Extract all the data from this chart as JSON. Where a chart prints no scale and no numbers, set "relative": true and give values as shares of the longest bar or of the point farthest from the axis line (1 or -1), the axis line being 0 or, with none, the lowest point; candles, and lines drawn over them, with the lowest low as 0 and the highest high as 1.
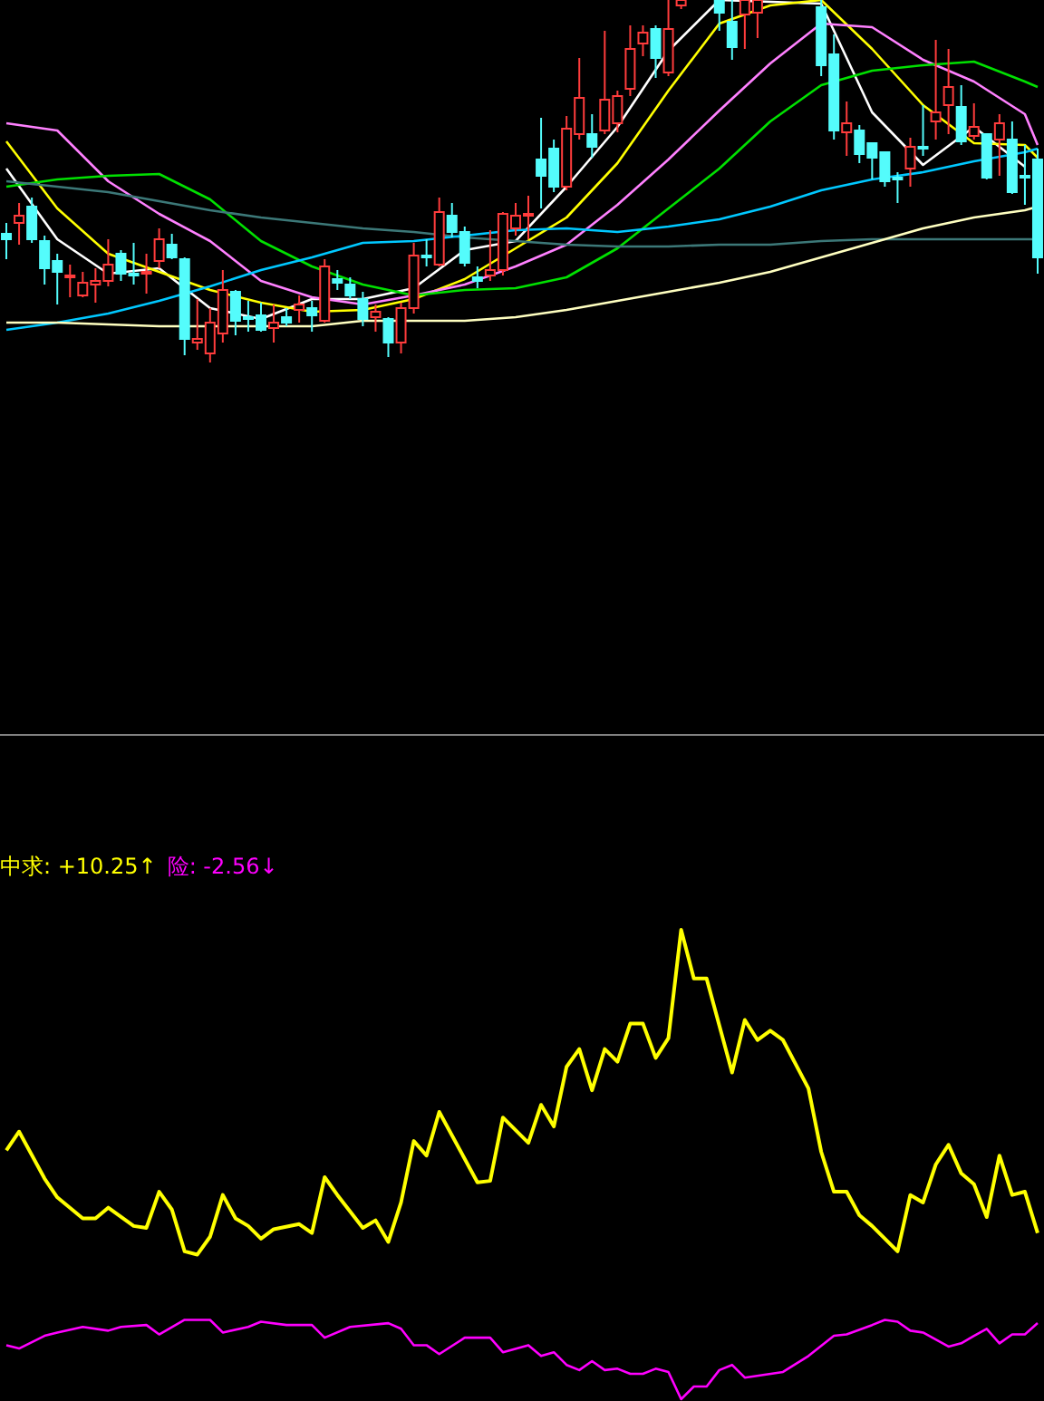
{
  "chart_data": [
    {
      "type": "candlestick",
      "relative": true,
      "categories": [
        null,
        null,
        null,
        null,
        null,
        null,
        null,
        null,
        null,
        null,
        null,
        null,
        null,
        null,
        null,
        null,
        null,
        null,
        null,
        null,
        null,
        null,
        null,
        null,
        null,
        null,
        null,
        null,
        null,
        null,
        null,
        null,
        null,
        null,
        null,
        null,
        null,
        null,
        null,
        null,
        null,
        null,
        null,
        null,
        null,
        null,
        null,
        null,
        null,
        null,
        null,
        null,
        null,
        null,
        null,
        null,
        null,
        null,
        null,
        null,
        null,
        null,
        null,
        null,
        null,
        null,
        null,
        null,
        null,
        null,
        null,
        null,
        null,
        null,
        null,
        null,
        null,
        null,
        null,
        null,
        null,
        null
      ],
      "ohlc": [
        [
          0.355,
          0.385,
          0.285,
          0.34
        ],
        [
          0.385,
          0.44,
          0.325,
          0.405
        ],
        [
          0.43,
          0.455,
          0.33,
          0.34
        ],
        [
          0.335,
          0.35,
          0.215,
          0.26
        ],
        [
          0.28,
          0.3,
          0.16,
          0.25
        ],
        [
          0.235,
          0.27,
          0.18,
          0.24
        ],
        [
          0.185,
          0.25,
          0.18,
          0.22
        ],
        [
          0.215,
          0.26,
          0.165,
          0.225
        ],
        [
          0.225,
          0.34,
          0.21,
          0.27
        ],
        [
          0.3,
          0.31,
          0.225,
          0.245
        ],
        [
          0.245,
          0.33,
          0.215,
          0.24
        ],
        [
          0.245,
          0.3,
          0.19,
          0.25
        ],
        [
          0.28,
          0.37,
          0.26,
          0.34
        ],
        [
          0.325,
          0.355,
          0.285,
          0.29
        ],
        [
          0.285,
          0.29,
          0.02,
          0.065
        ],
        [
          0.055,
          0.175,
          0.035,
          0.065
        ],
        [
          0.025,
          0.15,
          0,
          0.11
        ],
        [
          0.08,
          0.255,
          0.055,
          0.2
        ],
        [
          0.195,
          0.2,
          0.075,
          0.115
        ],
        [
          0.125,
          0.17,
          0.085,
          0.12
        ],
        [
          0.13,
          0.165,
          0.085,
          0.09
        ],
        [
          0.095,
          0.16,
          0.055,
          0.11
        ],
        [
          0.125,
          0.15,
          0.1,
          0.11
        ],
        [
          0.145,
          0.185,
          0.11,
          0.16
        ],
        [
          0.15,
          0.17,
          0.085,
          0.13
        ],
        [
          0.115,
          0.285,
          0.11,
          0.265
        ],
        [
          0.23,
          0.255,
          0.2,
          0.22
        ],
        [
          0.215,
          0.235,
          0.175,
          0.185
        ],
        [
          0.175,
          0.195,
          0.1,
          0.12
        ],
        [
          0.125,
          0.16,
          0.085,
          0.14
        ],
        [
          0.12,
          0.125,
          0.015,
          0.055
        ],
        [
          0.055,
          0.165,
          0.025,
          0.15
        ],
        [
          0.15,
          0.33,
          0.135,
          0.295
        ],
        [
          0.295,
          0.34,
          0.265,
          0.29
        ],
        [
          0.27,
          0.455,
          0.265,
          0.415
        ],
        [
          0.405,
          0.44,
          0.345,
          0.36
        ],
        [
          0.36,
          0.375,
          0.265,
          0.275
        ],
        [
          0.235,
          0.265,
          0.205,
          0.225
        ],
        [
          0.24,
          0.365,
          0.225,
          0.255
        ],
        [
          0.255,
          0.415,
          0.24,
          0.41
        ],
        [
          0.37,
          0.44,
          0.35,
          0.405
        ],
        [
          0.405,
          0.46,
          0.34,
          0.41
        ],
        [
          0.56,
          0.675,
          0.425,
          0.515
        ],
        [
          0.59,
          0.615,
          0.47,
          0.485
        ],
        [
          0.485,
          0.68,
          0.475,
          0.645
        ],
        [
          0.63,
          0.84,
          0.615,
          0.73
        ],
        [
          0.63,
          0.685,
          0.565,
          0.595
        ],
        [
          0.64,
          0.915,
          0.63,
          0.725
        ],
        [
          0.66,
          0.75,
          0.635,
          0.735
        ],
        [
          0.755,
          0.93,
          0.735,
          0.865
        ],
        [
          0.88,
          0.93,
          0.845,
          0.91
        ],
        [
          0.92,
          0.93,
          0.785,
          0.84
        ],
        [
          0.8,
          1,
          0.79,
          0.92
        ],
        [
          0.985,
          1,
          0.975,
          1
        ],
        null,
        null,
        [
          1,
          1,
          0.915,
          0.965
        ],
        [
          0.94,
          1,
          0.835,
          0.87
        ],
        [
          0.96,
          1,
          0.865,
          1
        ],
        [
          0.965,
          1,
          0.895,
          1
        ],
        null,
        null,
        null,
        null,
        [
          0.98,
          1,
          0.79,
          0.82
        ],
        [
          0.85,
          0.905,
          0.615,
          0.64
        ],
        [
          0.635,
          0.72,
          0.57,
          0.66
        ],
        [
          0.64,
          0.655,
          0.55,
          0.575
        ],
        [
          0.605,
          0.605,
          0.505,
          0.565
        ],
        [
          0.58,
          0.58,
          0.485,
          0.5
        ],
        [
          0.51,
          0.525,
          0.44,
          0.505
        ],
        [
          0.535,
          0.62,
          0.485,
          0.595
        ],
        [
          0.595,
          0.71,
          0.57,
          0.59
        ],
        [
          0.665,
          0.89,
          0.615,
          0.69
        ],
        [
          0.71,
          0.865,
          0.63,
          0.76
        ],
        [
          0.705,
          0.765,
          0.6,
          0.61
        ],
        [
          0.625,
          0.715,
          0.615,
          0.65
        ],
        [
          0.63,
          0.63,
          0.505,
          0.51
        ],
        [
          0.615,
          0.685,
          0.515,
          0.66
        ],
        [
          0.615,
          0.665,
          0.465,
          0.47
        ],
        [
          0.515,
          0.6,
          0.435,
          0.51
        ],
        [
          0.56,
          0.59,
          0.245,
          0.29
        ]
      ],
      "colors": [
        "#54fcfc",
        "#ff3c3c",
        "#54fcfc",
        "#54fcfc",
        "#54fcfc",
        "#ff3c3c",
        "#ff3c3c",
        "#ff3c3c",
        "#ff3c3c",
        "#54fcfc",
        "#54fcfc",
        "#ff3c3c",
        "#ff3c3c",
        "#54fcfc",
        "#54fcfc",
        "#ff3c3c",
        "#ff3c3c",
        "#ff3c3c",
        "#54fcfc",
        "#54fcfc",
        "#54fcfc",
        "#ff3c3c",
        "#54fcfc",
        "#ff3c3c",
        "#54fcfc",
        "#ff3c3c",
        "#54fcfc",
        "#54fcfc",
        "#54fcfc",
        "#ff3c3c",
        "#54fcfc",
        "#ff3c3c",
        "#ff3c3c",
        "#54fcfc",
        "#ff3c3c",
        "#54fcfc",
        "#54fcfc",
        "#54fcfc",
        "#ff3c3c",
        "#ff3c3c",
        "#ff3c3c",
        "#ff3c3c",
        "#54fcfc",
        "#54fcfc",
        "#ff3c3c",
        "#ff3c3c",
        "#54fcfc",
        "#ff3c3c",
        "#ff3c3c",
        "#ff3c3c",
        "#ff3c3c",
        "#54fcfc",
        "#ff3c3c",
        "#ff3c3c",
        null,
        null,
        "#54fcfc",
        "#54fcfc",
        "#ff3c3c",
        "#ff3c3c",
        null,
        null,
        null,
        null,
        "#54fcfc",
        "#54fcfc",
        "#ff3c3c",
        "#54fcfc",
        "#54fcfc",
        "#54fcfc",
        "#54fcfc",
        "#ff3c3c",
        "#54fcfc",
        "#ff3c3c",
        "#ff3c3c",
        "#54fcfc",
        "#ff3c3c",
        "#54fcfc",
        "#ff3c3c",
        "#54fcfc",
        "#54fcfc",
        "#54fcfc"
      ],
      "series": [
        {
          "type": "line",
          "color": "#ffffff",
          "values": [
            0.535,
            null,
            null,
            null,
            0.34,
            null,
            null,
            null,
            0.245,
            null,
            null,
            null,
            0.26,
            null,
            null,
            null,
            0.15,
            null,
            null,
            null,
            0.12,
            null,
            null,
            null,
            0.175,
            null,
            null,
            null,
            0.175,
            null,
            null,
            null,
            0.205,
            null,
            null,
            null,
            0.31,
            null,
            null,
            null,
            0.335,
            null,
            null,
            null,
            0.485,
            null,
            null,
            null,
            0.65,
            null,
            null,
            null,
            0.86,
            null,
            null,
            null,
            1.0,
            null,
            null,
            null,
            null,
            null,
            null,
            null,
            0.99,
            null,
            null,
            null,
            0.69,
            null,
            null,
            null,
            0.545,
            null,
            null,
            null,
            0.65,
            null,
            null,
            null,
            0.54,
            null
          ]
        },
        {
          "type": "line",
          "color": "#ffff00",
          "values": [
            0.61,
            null,
            null,
            null,
            0.425,
            null,
            null,
            null,
            0.3,
            null,
            null,
            null,
            0.25,
            null,
            null,
            null,
            0.2,
            null,
            null,
            null,
            0.165,
            null,
            null,
            null,
            0.14,
            null,
            null,
            null,
            0.145,
            null,
            null,
            null,
            0.175,
            null,
            null,
            null,
            0.23,
            null,
            null,
            null,
            0.315,
            null,
            null,
            null,
            0.4,
            null,
            null,
            null,
            0.55,
            null,
            null,
            null,
            0.75,
            null,
            null,
            null,
            0.935,
            null,
            null,
            null,
            0.985,
            null,
            null,
            null,
            1.0,
            null,
            null,
            null,
            0.865,
            null,
            null,
            null,
            0.71,
            null,
            null,
            null,
            0.605,
            null,
            null,
            null,
            0.6,
            0.565
          ]
        },
        {
          "type": "line",
          "color": "#ff80ff",
          "values": [
            0.66,
            null,
            null,
            null,
            0.64,
            null,
            null,
            null,
            0.5,
            null,
            null,
            null,
            0.41,
            null,
            null,
            null,
            0.335,
            null,
            null,
            null,
            0.225,
            null,
            null,
            null,
            0.18,
            null,
            null,
            null,
            0.16,
            null,
            null,
            null,
            0.185,
            null,
            null,
            null,
            0.215,
            null,
            null,
            null,
            0.265,
            null,
            null,
            null,
            0.325,
            null,
            null,
            null,
            0.435,
            null,
            null,
            null,
            0.56,
            null,
            null,
            null,
            0.695,
            null,
            null,
            null,
            0.825,
            null,
            null,
            null,
            0.935,
            null,
            null,
            null,
            0.925,
            null,
            null,
            null,
            0.835,
            null,
            null,
            null,
            0.775,
            null,
            null,
            null,
            0.685,
            0.6
          ]
        },
        {
          "type": "line",
          "color": "#00e000",
          "values": [
            0.485,
            null,
            null,
            null,
            0.505,
            null,
            null,
            null,
            0.515,
            null,
            null,
            null,
            0.52,
            null,
            null,
            null,
            0.45,
            null,
            null,
            null,
            0.335,
            null,
            null,
            null,
            0.265,
            null,
            null,
            null,
            0.215,
            null,
            null,
            null,
            0.185,
            null,
            null,
            null,
            0.2,
            null,
            null,
            null,
            0.205,
            null,
            null,
            null,
            0.235,
            null,
            null,
            null,
            0.315,
            null,
            null,
            null,
            0.425,
            null,
            null,
            null,
            0.535,
            null,
            null,
            null,
            0.665,
            null,
            null,
            null,
            0.765,
            null,
            null,
            null,
            0.805,
            null,
            null,
            null,
            0.82,
            null,
            null,
            null,
            0.83,
            null,
            null,
            null,
            0.775,
            0.76
          ]
        },
        {
          "type": "line",
          "color": "#3c7878",
          "values": [
            0.5,
            null,
            null,
            null,
            0.485,
            null,
            null,
            null,
            0.47,
            null,
            null,
            null,
            0.445,
            null,
            null,
            null,
            0.42,
            null,
            null,
            null,
            0.4,
            null,
            null,
            null,
            0.385,
            null,
            null,
            null,
            0.37,
            null,
            null,
            null,
            0.36,
            null,
            null,
            null,
            0.345,
            null,
            null,
            null,
            0.335,
            null,
            null,
            null,
            0.325,
            null,
            null,
            null,
            0.32,
            null,
            null,
            null,
            0.32,
            null,
            null,
            null,
            0.325,
            null,
            null,
            null,
            0.325,
            null,
            null,
            null,
            0.335,
            null,
            null,
            null,
            0.34,
            null,
            null,
            null,
            0.34,
            null,
            null,
            null,
            0.34,
            null,
            null,
            null,
            0.34,
            0.34
          ]
        },
        {
          "type": "line",
          "color": "#00c8ff",
          "values": [
            0.09,
            null,
            null,
            null,
            0.11,
            null,
            null,
            null,
            0.135,
            null,
            null,
            null,
            0.17,
            null,
            null,
            null,
            0.21,
            null,
            null,
            null,
            0.255,
            null,
            null,
            null,
            0.29,
            null,
            null,
            null,
            0.33,
            null,
            null,
            null,
            0.335,
            null,
            null,
            null,
            0.35,
            null,
            null,
            null,
            0.365,
            null,
            null,
            null,
            0.37,
            null,
            null,
            null,
            0.36,
            null,
            null,
            null,
            0.375,
            null,
            null,
            null,
            0.395,
            null,
            null,
            null,
            0.43,
            null,
            null,
            null,
            0.475,
            null,
            null,
            null,
            0.505,
            null,
            null,
            null,
            0.525,
            null,
            null,
            null,
            0.555,
            null,
            null,
            null,
            0.58,
            0.59
          ]
        },
        {
          "type": "line",
          "color": "#ffffc0",
          "values": [
            0.11,
            null,
            null,
            null,
            0.11,
            null,
            null,
            null,
            0.105,
            null,
            null,
            null,
            0.1,
            null,
            null,
            null,
            0.1,
            null,
            null,
            null,
            0.1,
            null,
            null,
            null,
            0.1,
            null,
            null,
            null,
            0.115,
            null,
            null,
            null,
            0.115,
            null,
            null,
            null,
            0.115,
            null,
            null,
            null,
            0.125,
            null,
            null,
            null,
            0.145,
            null,
            null,
            null,
            0.17,
            null,
            null,
            null,
            0.195,
            null,
            null,
            null,
            0.22,
            null,
            null,
            null,
            0.25,
            null,
            null,
            null,
            0.29,
            null,
            null,
            null,
            0.33,
            null,
            null,
            null,
            0.37,
            null,
            null,
            null,
            0.4,
            null,
            null,
            null,
            0.42,
            0.43
          ]
        }
      ]
    },
    {
      "type": "line",
      "relative": true,
      "categories": [
        null,
        null,
        null,
        null,
        null,
        null,
        null,
        null,
        null,
        null,
        null,
        null,
        null,
        null,
        null,
        null,
        null,
        null,
        null,
        null,
        null,
        null,
        null,
        null,
        null,
        null,
        null,
        null,
        null,
        null,
        null,
        null,
        null,
        null,
        null,
        null,
        null,
        null,
        null,
        null,
        null,
        null,
        null,
        null,
        null,
        null,
        null,
        null,
        null,
        null,
        null,
        null,
        null,
        null,
        null,
        null,
        null,
        null,
        null,
        null,
        null,
        null,
        null,
        null,
        null,
        null,
        null,
        null,
        null,
        null,
        null,
        null,
        null,
        null,
        null,
        null,
        null,
        null,
        null,
        null,
        null,
        null
      ],
      "annotations": [
        "中求: +10.25↑",
        "险: -2.56↓"
      ],
      "series": [
        {
          "color": "#ffff00",
          "values": [
            0.53,
            0.57,
            null,
            0.47,
            0.43,
            null,
            0.385,
            0.385,
            0.408,
            null,
            0.369,
            0.365,
            0.442,
            0.404,
            0.315,
            0.308,
            0.346,
            0.435,
            0.385,
            0.369,
            0.342,
            0.362,
            null,
            0.373,
            0.354,
            0.473,
            0.435,
            null,
            0.365,
            0.381,
            0.335,
            0.419,
            0.55,
            0.519,
            0.612,
            null,
            null,
            0.462,
            0.465,
            0.6,
            null,
            0.546,
            0.627,
            0.581,
            0.708,
            0.746,
            0.658,
            0.746,
            0.719,
            0.8,
            0.8,
            0.727,
            0.769,
            1,
            0.896,
            0.896,
            null,
            0.696,
            0.808,
            0.765,
            0.785,
            0.765,
            null,
            0.662,
            0.527,
            0.442,
            0.442,
            0.392,
            0.369,
            null,
            0.315,
            0.435,
            0.419,
            0.5,
            0.542,
            0.481,
            0.458,
            0.388,
            0.519,
            0.435,
            0.442,
            0.354
          ]
        },
        {
          "color": "#ff00ff",
          "values": [
            0.115,
            0.108,
            null,
            0.135,
            0.142,
            null,
            0.154,
            null,
            0.146,
            0.154,
            null,
            0.158,
            0.138,
            null,
            0.169,
            null,
            0.169,
            0.142,
            null,
            0.154,
            0.165,
            null,
            0.158,
            null,
            0.158,
            0.131,
            null,
            0.154,
            null,
            null,
            0.162,
            0.15,
            0.115,
            0.115,
            0.096,
            null,
            0.131,
            null,
            0.131,
            0.1,
            null,
            0.115,
            0.092,
            0.1,
            0.073,
            0.062,
            0.081,
            0.062,
            0.065,
            0.054,
            0.054,
            0.065,
            0.058,
            0,
            0.027,
            0.027,
            0.062,
            0.073,
            0.046,
            null,
            null,
            0.058,
            null,
            0.092,
            null,
            0.135,
            0.138,
            null,
            0.158,
            0.169,
            0.165,
            0.146,
            0.142,
            null,
            0.112,
            0.119,
            0.135,
            0.15,
            0.119,
            0.138,
            0.138,
            0.162
          ]
        }
      ]
    }
  ]
}
